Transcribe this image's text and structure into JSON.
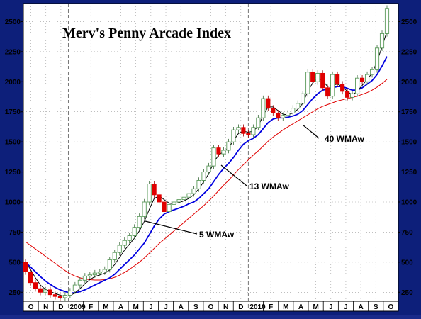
{
  "chart_data": {
    "type": "line",
    "title": "Merv's Penny Arcade Index",
    "ylim": [
      175,
      2650
    ],
    "y_ticks": [
      250,
      500,
      750,
      1000,
      1250,
      1500,
      1750,
      2000,
      2250,
      2500
    ],
    "y_tick_labels": [
      "250",
      "500",
      "750",
      "1000",
      "1250",
      "1500",
      "1750",
      "2000",
      "2250",
      "2500"
    ],
    "x_tick_labels": [
      "O",
      "N",
      "D",
      "2009",
      "F",
      "M",
      "A",
      "M",
      "J",
      "J",
      "A",
      "S",
      "O",
      "N",
      "D",
      "2010",
      "F",
      "M",
      "A",
      "M",
      "J",
      "J",
      "A",
      "S",
      "O"
    ],
    "grid": true,
    "annotations": [
      "5 WMAw",
      "13 WMAw",
      "40 WMAw"
    ],
    "colors": {
      "up_candle": "#5a9a5a",
      "down_candle": "#e00000",
      "wma5": "#000000",
      "wma13": "#0000e0",
      "wma40": "#e00000",
      "background": "#ffffff",
      "frame": "#0d1f7a"
    },
    "candles": [
      {
        "o": 500,
        "c": 420
      },
      {
        "o": 420,
        "c": 330
      },
      {
        "o": 330,
        "c": 280
      },
      {
        "o": 280,
        "c": 250
      },
      {
        "o": 250,
        "c": 270
      },
      {
        "o": 270,
        "c": 230
      },
      {
        "o": 230,
        "c": 215
      },
      {
        "o": 215,
        "c": 205
      },
      {
        "o": 205,
        "c": 225
      },
      {
        "o": 225,
        "c": 260
      },
      {
        "o": 260,
        "c": 310
      },
      {
        "o": 310,
        "c": 350
      },
      {
        "o": 350,
        "c": 385
      },
      {
        "o": 385,
        "c": 395
      },
      {
        "o": 395,
        "c": 410
      },
      {
        "o": 410,
        "c": 420
      },
      {
        "o": 420,
        "c": 440
      },
      {
        "o": 440,
        "c": 520
      },
      {
        "o": 520,
        "c": 580
      },
      {
        "o": 580,
        "c": 640
      },
      {
        "o": 640,
        "c": 680
      },
      {
        "o": 680,
        "c": 720
      },
      {
        "o": 720,
        "c": 790
      },
      {
        "o": 790,
        "c": 880
      },
      {
        "o": 880,
        "c": 1000
      },
      {
        "o": 1000,
        "c": 1150
      },
      {
        "o": 1150,
        "c": 1060
      },
      {
        "o": 1060,
        "c": 1000
      },
      {
        "o": 1000,
        "c": 920
      },
      {
        "o": 920,
        "c": 980
      },
      {
        "o": 980,
        "c": 1000
      },
      {
        "o": 1000,
        "c": 1020
      },
      {
        "o": 1020,
        "c": 1040
      },
      {
        "o": 1040,
        "c": 1070
      },
      {
        "o": 1070,
        "c": 1110
      },
      {
        "o": 1110,
        "c": 1180
      },
      {
        "o": 1180,
        "c": 1250
      },
      {
        "o": 1250,
        "c": 1300
      },
      {
        "o": 1300,
        "c": 1450
      },
      {
        "o": 1450,
        "c": 1400
      },
      {
        "o": 1400,
        "c": 1430
      },
      {
        "o": 1430,
        "c": 1500
      },
      {
        "o": 1500,
        "c": 1600
      },
      {
        "o": 1600,
        "c": 1620
      },
      {
        "o": 1620,
        "c": 1570
      },
      {
        "o": 1570,
        "c": 1560
      },
      {
        "o": 1560,
        "c": 1620
      },
      {
        "o": 1620,
        "c": 1700
      },
      {
        "o": 1700,
        "c": 1860
      },
      {
        "o": 1860,
        "c": 1780
      },
      {
        "o": 1780,
        "c": 1740
      },
      {
        "o": 1740,
        "c": 1700
      },
      {
        "o": 1700,
        "c": 1720
      },
      {
        "o": 1720,
        "c": 1740
      },
      {
        "o": 1740,
        "c": 1780
      },
      {
        "o": 1780,
        "c": 1820
      },
      {
        "o": 1820,
        "c": 1900
      },
      {
        "o": 1900,
        "c": 2080
      },
      {
        "o": 2080,
        "c": 2000
      },
      {
        "o": 2000,
        "c": 2070
      },
      {
        "o": 2070,
        "c": 1950
      },
      {
        "o": 1950,
        "c": 1880
      },
      {
        "o": 1880,
        "c": 2060
      },
      {
        "o": 2060,
        "c": 1980
      },
      {
        "o": 1980,
        "c": 1920
      },
      {
        "o": 1920,
        "c": 1870
      },
      {
        "o": 1870,
        "c": 1900
      },
      {
        "o": 1900,
        "c": 2030
      },
      {
        "o": 2030,
        "c": 2000
      },
      {
        "o": 2000,
        "c": 2060
      },
      {
        "o": 2060,
        "c": 2100
      },
      {
        "o": 2100,
        "c": 2280
      },
      {
        "o": 2280,
        "c": 2400
      },
      {
        "o": 2400,
        "c": 2610
      }
    ],
    "wma5": [
      500,
      440,
      370,
      310,
      275,
      255,
      240,
      225,
      215,
      222,
      245,
      280,
      320,
      355,
      380,
      395,
      408,
      435,
      480,
      540,
      600,
      650,
      700,
      760,
      840,
      940,
      1030,
      1050,
      1020,
      990,
      985,
      995,
      1010,
      1030,
      1060,
      1110,
      1170,
      1235,
      1330,
      1390,
      1420,
      1450,
      1510,
      1570,
      1590,
      1580,
      1590,
      1630,
      1720,
      1790,
      1790,
      1760,
      1730,
      1725,
      1740,
      1770,
      1820,
      1920,
      1990,
      2030,
      2010,
      1960,
      1970,
      1980,
      1960,
      1920,
      1890,
      1920,
      1970,
      2020,
      2070,
      2170,
      2290,
      2420
    ],
    "wma13": [
      500,
      460,
      420,
      380,
      345,
      315,
      290,
      270,
      255,
      245,
      245,
      255,
      270,
      290,
      310,
      330,
      350,
      370,
      400,
      440,
      480,
      520,
      560,
      610,
      660,
      730,
      800,
      860,
      900,
      920,
      935,
      950,
      965,
      985,
      1000,
      1030,
      1070,
      1110,
      1170,
      1230,
      1280,
      1320,
      1370,
      1430,
      1480,
      1510,
      1530,
      1560,
      1610,
      1660,
      1690,
      1700,
      1700,
      1705,
      1715,
      1730,
      1760,
      1810,
      1860,
      1900,
      1930,
      1940,
      1950,
      1960,
      1960,
      1945,
      1930,
      1930,
      1950,
      1980,
      2010,
      2060,
      2130,
      2210
    ],
    "wma40": [
      670,
      640,
      610,
      580,
      550,
      520,
      490,
      460,
      430,
      405,
      385,
      370,
      360,
      355,
      352,
      352,
      355,
      362,
      375,
      392,
      415,
      440,
      470,
      500,
      535,
      575,
      615,
      655,
      690,
      725,
      760,
      795,
      830,
      865,
      900,
      935,
      970,
      1010,
      1050,
      1095,
      1140,
      1180,
      1225,
      1270,
      1310,
      1350,
      1390,
      1425,
      1465,
      1505,
      1540,
      1570,
      1600,
      1625,
      1650,
      1675,
      1700,
      1725,
      1750,
      1775,
      1795,
      1810,
      1825,
      1840,
      1850,
      1860,
      1870,
      1880,
      1895,
      1910,
      1930,
      1955,
      1985,
      2020
    ]
  }
}
